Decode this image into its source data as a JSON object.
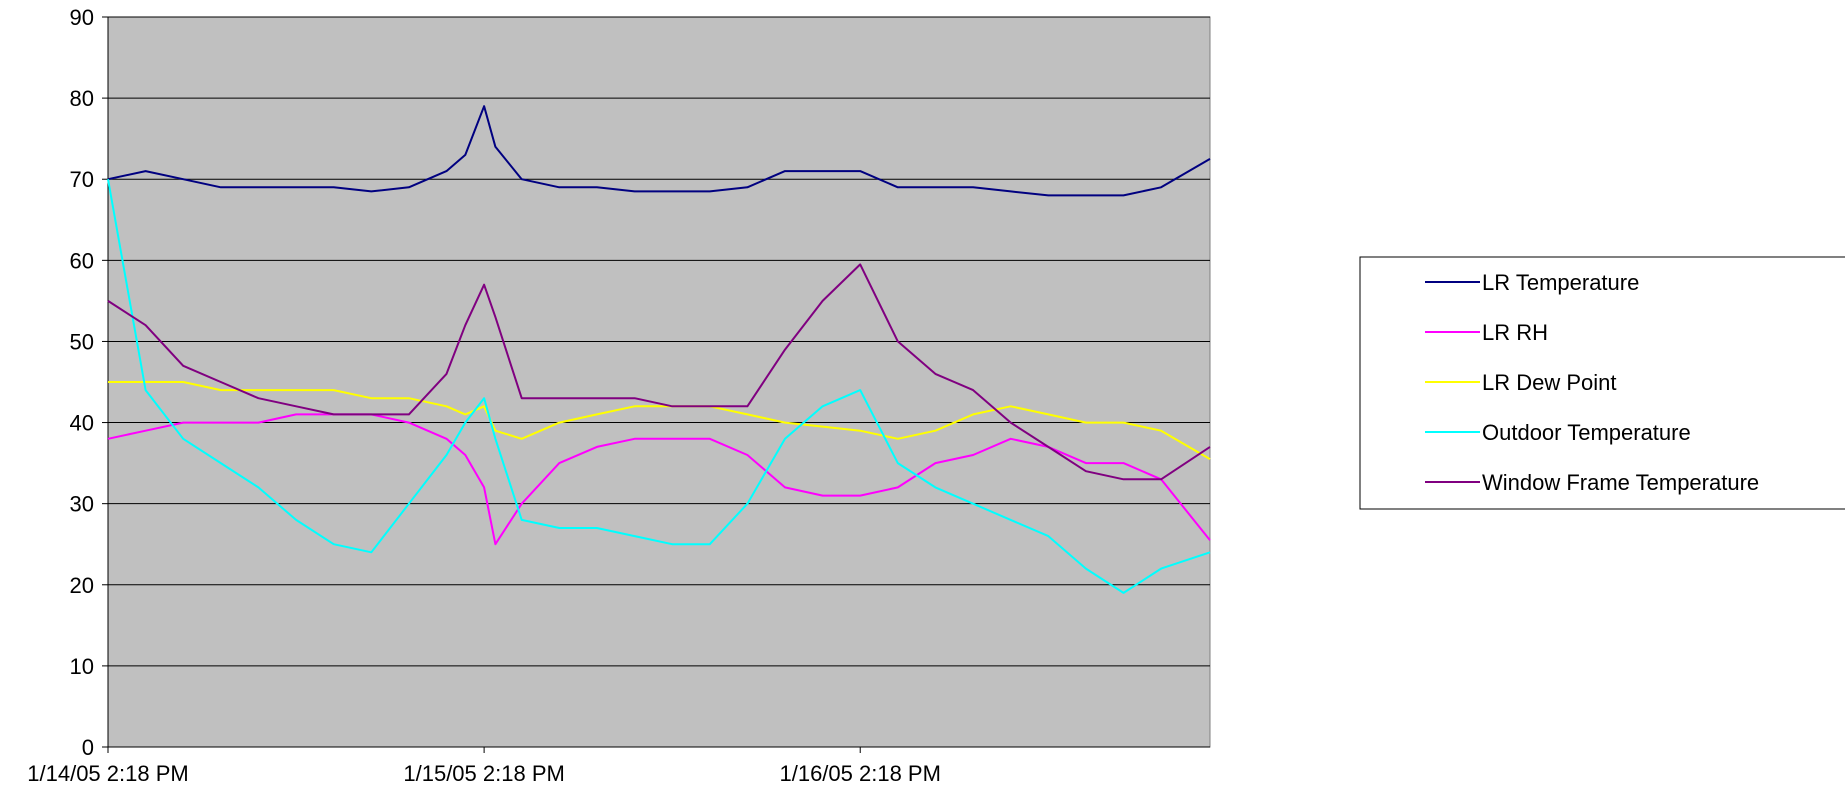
{
  "chart_data": {
    "type": "line",
    "title": "",
    "xlabel": "",
    "ylabel": "",
    "ylim": [
      0,
      90
    ],
    "yticks": [
      "0",
      "10",
      "20",
      "30",
      "40",
      "50",
      "60",
      "70",
      "80",
      "90"
    ],
    "xtick_labels": [
      "1/14/05 2:18 PM",
      "1/15/05 2:18 PM",
      "1/16/05 2:18 PM"
    ],
    "xtick_days": [
      0,
      1,
      2
    ],
    "xlim_days": [
      0,
      2.93
    ],
    "grid": true,
    "plot_background": "#c0c0c0",
    "legend_position": "right",
    "x_days": [
      0,
      0.1,
      0.2,
      0.3,
      0.4,
      0.5,
      0.6,
      0.7,
      0.8,
      0.9,
      0.95,
      1.0,
      1.03,
      1.1,
      1.2,
      1.3,
      1.4,
      1.5,
      1.6,
      1.7,
      1.8,
      1.9,
      2.0,
      2.1,
      2.2,
      2.3,
      2.4,
      2.5,
      2.6,
      2.7,
      2.8,
      2.93
    ],
    "series": [
      {
        "name": "LR Temperature",
        "color": "#000080",
        "values": [
          70,
          71,
          70,
          69,
          69,
          69,
          69,
          68.5,
          69,
          71,
          73,
          79,
          74,
          70,
          69,
          69,
          68.5,
          68.5,
          68.5,
          69,
          71,
          71,
          71,
          69,
          69,
          69,
          68.5,
          68,
          68,
          68,
          69,
          72.5
        ]
      },
      {
        "name": "LR RH",
        "color": "#ff00ff",
        "values": [
          38,
          39,
          40,
          40,
          40,
          41,
          41,
          41,
          40,
          38,
          36,
          32,
          25,
          30,
          35,
          37,
          38,
          38,
          38,
          36,
          32,
          31,
          31,
          32,
          35,
          36,
          38,
          37,
          35,
          35,
          33,
          25.5
        ]
      },
      {
        "name": "LR Dew Point",
        "color": "#ffff00",
        "values": [
          45,
          45,
          45,
          44,
          44,
          44,
          44,
          43,
          43,
          42,
          41,
          42,
          39,
          38,
          40,
          41,
          42,
          42,
          42,
          41,
          40,
          39.5,
          39,
          38,
          39,
          41,
          42,
          41,
          40,
          40,
          39,
          35.5
        ]
      },
      {
        "name": "Outdoor Temperature",
        "color": "#00ffff",
        "values": [
          70,
          44,
          38,
          35,
          32,
          28,
          25,
          24,
          30,
          36,
          40,
          43,
          38,
          28,
          27,
          27,
          26,
          25,
          25,
          30,
          38,
          42,
          44,
          35,
          32,
          30,
          28,
          26,
          22,
          19,
          22,
          24
        ]
      },
      {
        "name": "Window Frame Temperature",
        "color": "#800080",
        "values": [
          55,
          52,
          47,
          45,
          43,
          42,
          41,
          41,
          41,
          46,
          52,
          57,
          53,
          43,
          43,
          43,
          43,
          42,
          42,
          42,
          49,
          55,
          59.5,
          50,
          46,
          44,
          40,
          37,
          34,
          33,
          33,
          37
        ]
      }
    ]
  }
}
